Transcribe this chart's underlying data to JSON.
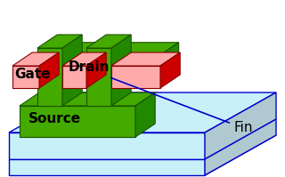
{
  "title": "",
  "background": "#ffffff",
  "substrate_color_top": "#c8f0f8",
  "substrate_color_side_left": "#a0d8e8",
  "substrate_color_side_right": "#b0c8d0",
  "substrate_outline": "#0000cc",
  "fin_top_color": "#44aa00",
  "fin_side_color": "#228800",
  "fin_front_color": "#336600",
  "gate_top_color": "#ffaaaa",
  "gate_side_color": "#ff4444",
  "gate_front_color": "#cc0000",
  "label_drain": "Drain",
  "label_gate": "Gate",
  "label_source": "Source",
  "label_fin": "Fin",
  "label_color": "#000000",
  "label_fontsize": 11,
  "annotation_color": "#0000cc",
  "figsize": [
    3.2,
    1.99
  ],
  "dpi": 100
}
